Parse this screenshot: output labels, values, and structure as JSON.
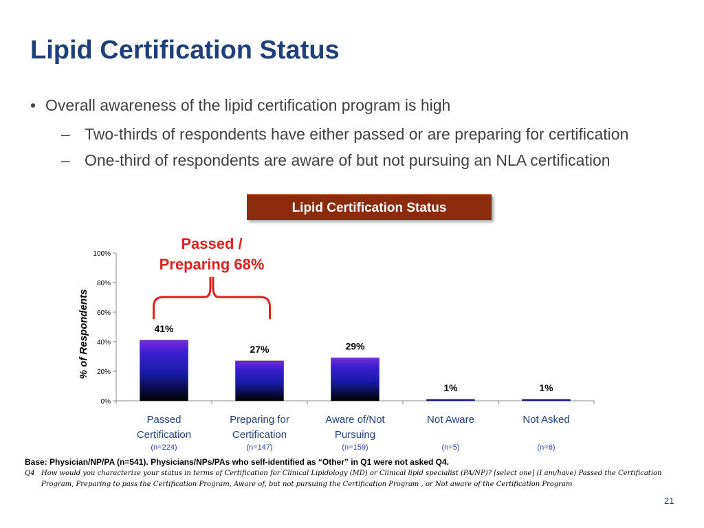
{
  "slide": {
    "title": "Lipid Certification Status",
    "bullet": "Overall awareness of the lipid certification program is high",
    "bullet_marker": "•",
    "sub_marker": "–",
    "subbullets": [
      "Two-thirds of respondents have either passed or are preparing for certification",
      "One-third of respondents are aware of but not pursuing an NLA certification"
    ],
    "chart_banner": "Lipid Certification Status",
    "base_note": "Base: Physician/NP/PA (n=541).  Physicians/NPs/PAs who self-identified as “Other” in Q1 were not asked Q4.",
    "question_number": "Q4",
    "question_text": "How would you characterize your status in terms of Certification for Clinical Lipidology (MD) or Clinical lipid specialist (PA/NP)? [select one] (I am/have) Passed the Certification Program, Preparing to pass the Certification Program, Aware of, but not pursuing the Certification Program , or Not aware of the Certification Program",
    "page_number": "21"
  },
  "chart_data": {
    "type": "bar",
    "categories": [
      [
        "Passed",
        "Certification"
      ],
      [
        "Preparing for",
        "Certification"
      ],
      [
        "Aware of/Not",
        "Pursuing"
      ],
      [
        "Not Aware"
      ],
      [
        "Not Asked"
      ]
    ],
    "sample_sizes": [
      "(n=224)",
      "(n=147)",
      "(n=159)",
      "(n=5)",
      "(n=6)"
    ],
    "values": [
      41,
      27,
      29,
      1,
      1
    ],
    "data_labels": [
      "41%",
      "27%",
      "29%",
      "1%",
      "1%"
    ],
    "ylabel": "% of Respondents",
    "ylim": [
      0,
      100
    ],
    "yticks": [
      0,
      20,
      40,
      60,
      80,
      100
    ],
    "ytick_labels": [
      "0%",
      "20%",
      "40%",
      "60%",
      "80%",
      "100%"
    ],
    "grid": false,
    "annotation": {
      "lines": [
        "Passed /",
        "Preparing 68%"
      ],
      "spans_categories": [
        0,
        1
      ],
      "color": "#e0201b"
    },
    "colors": {
      "bar_top": "#7a2be0",
      "bar_mid": "#1a1aa8",
      "bar_bottom": "#000000",
      "category_label": "#1f3e7c",
      "sample_size": "#2a3fa0"
    }
  }
}
